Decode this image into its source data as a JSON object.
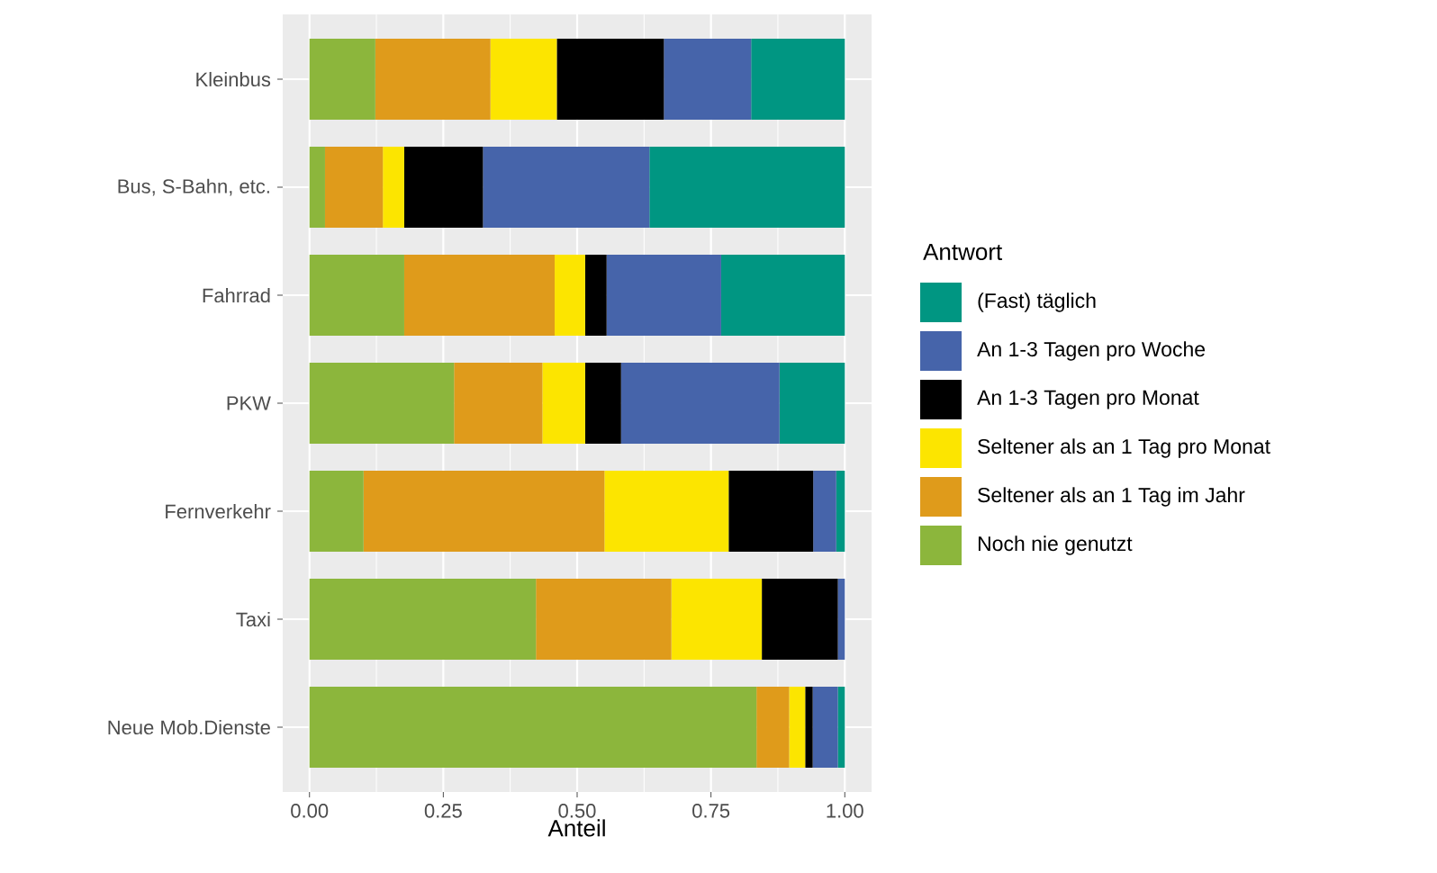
{
  "chart_data": {
    "type": "bar",
    "orientation": "horizontal",
    "stacked": true,
    "xlabel": "Anteil",
    "legend_title": "Antwort",
    "legend": "right",
    "grid": true,
    "categories": [
      "Kleinbus",
      "Bus, S-Bahn, etc.",
      "Fahrrad",
      "PKW",
      "Fernverkehr",
      "Taxi",
      "Neue Mob.Dienste"
    ],
    "xlim": [
      -0.05,
      1.05
    ],
    "xticks": [
      {
        "value": 0,
        "label": "0.00"
      },
      {
        "value": 0.25,
        "label": "0.25"
      },
      {
        "value": 0.5,
        "label": "0.50"
      },
      {
        "value": 0.75,
        "label": "0.75"
      },
      {
        "value": 1,
        "label": "1.00"
      }
    ],
    "series": [
      {
        "name": "Noch nie genutzt",
        "color": "#8cb63c",
        "values": [
          0.123,
          0.029,
          0.177,
          0.27,
          0.101,
          0.423,
          0.835
        ]
      },
      {
        "name": "Seltener als an 1 Tag im Jahr",
        "color": "#df9b1b",
        "values": [
          0.215,
          0.108,
          0.281,
          0.165,
          0.45,
          0.253,
          0.061
        ]
      },
      {
        "name": "Seltener als an 1 Tag pro Monat",
        "color": "#fce500",
        "values": [
          0.124,
          0.04,
          0.057,
          0.08,
          0.232,
          0.169,
          0.03
        ]
      },
      {
        "name": "An 1-3 Tagen pro Monat",
        "color": "#000000",
        "values": [
          0.2,
          0.147,
          0.04,
          0.067,
          0.158,
          0.142,
          0.014
        ]
      },
      {
        "name": "An 1-3 Tagen pro Woche",
        "color": "#4664aa",
        "values": [
          0.163,
          0.311,
          0.214,
          0.296,
          0.043,
          0.013,
          0.047
        ]
      },
      {
        "name": "(Fast) täglich",
        "color": "#009682",
        "values": [
          0.175,
          0.365,
          0.231,
          0.122,
          0.016,
          0.0,
          0.013
        ]
      }
    ]
  }
}
